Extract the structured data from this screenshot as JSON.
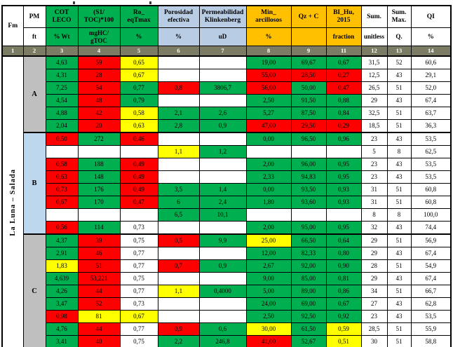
{
  "colors": {
    "cell_green": "#00b050",
    "cell_red": "#ff0000",
    "cell_yellow": "#ffff00",
    "header_green": "#00b050",
    "header_blue": "#b8cce4",
    "header_gold": "#ffc000",
    "number_row_bg": "#7c7c64",
    "group_gray": "#bfbfbf",
    "group_blue": "#bdd7ee"
  },
  "chart_data": {
    "type": "table",
    "fm_header": "Fm",
    "pm_header": "PM",
    "pm_unit": "ft",
    "rotated_label": "La Luna – Salada",
    "columns": [
      {
        "key": "cot",
        "title": "COT\nLECO",
        "unit": "% Wt",
        "bg": "g"
      },
      {
        "key": "s1toc",
        "title": "(S1/\nTOC)*100",
        "unit": "mgHC/\ngTOC",
        "bg": "g"
      },
      {
        "key": "ro",
        "title": "Ro_\neqTmax",
        "unit": "%",
        "bg": "g"
      },
      {
        "key": "por",
        "title": "Porosidad\nefectiva",
        "unit": "%",
        "bg": "b"
      },
      {
        "key": "perm",
        "title": "Permeabilidad\nKlinkenberg",
        "unit": "uD",
        "bg": "b"
      },
      {
        "key": "minarc",
        "title": "Min_\narcillosos",
        "unit": "%",
        "bg": "y"
      },
      {
        "key": "qzc",
        "title": "Qz + C",
        "unit": "",
        "bg": "y"
      },
      {
        "key": "bihu",
        "title": "BI_Hu,\n2015",
        "unit": "fraction",
        "bg": "y"
      },
      {
        "key": "sum",
        "title": "Sum.",
        "unit": "unitless",
        "bg": "w"
      },
      {
        "key": "summax",
        "title": "Sum.\nMax.",
        "unit": "Q.",
        "bg": "w"
      },
      {
        "key": "qi",
        "title": "QI",
        "unit": "%",
        "bg": "w"
      }
    ],
    "column_numbers": [
      "1",
      "2",
      "3",
      "4",
      "5",
      "6",
      "7",
      "8",
      "9",
      "11",
      "12",
      "13",
      "14"
    ],
    "groups": [
      {
        "label": "A",
        "bg_key": "group_gray",
        "rows": [
          [
            [
              "4,63",
              "g"
            ],
            [
              "59",
              "r"
            ],
            [
              "0,65",
              "y"
            ],
            [
              "",
              "w"
            ],
            [
              "",
              "w"
            ],
            [
              "19,00",
              "g"
            ],
            [
              "69,67",
              "g"
            ],
            [
              "0,67",
              "g"
            ],
            [
              "31,5",
              "w"
            ],
            [
              "52",
              "w"
            ],
            [
              "60,6",
              "w"
            ]
          ],
          [
            [
              "4,31",
              "g"
            ],
            [
              "28",
              "r"
            ],
            [
              "0,67",
              "y"
            ],
            [
              "",
              "w"
            ],
            [
              "",
              "w"
            ],
            [
              "55,00",
              "r"
            ],
            [
              "28,50",
              "r"
            ],
            [
              "0,27",
              "r"
            ],
            [
              "12,5",
              "w"
            ],
            [
              "43",
              "w"
            ],
            [
              "29,1",
              "w"
            ]
          ],
          [
            [
              "7,25",
              "g"
            ],
            [
              "54",
              "r"
            ],
            [
              "0,77",
              "g"
            ],
            [
              "0,8",
              "r"
            ],
            [
              "3806,7",
              "g"
            ],
            [
              "56,00",
              "r"
            ],
            [
              "50,00",
              "g"
            ],
            [
              "0,47",
              "r"
            ],
            [
              "26,5",
              "w"
            ],
            [
              "51",
              "w"
            ],
            [
              "52,0",
              "w"
            ]
          ],
          [
            [
              "4,54",
              "g"
            ],
            [
              "48",
              "r"
            ],
            [
              "0,79",
              "g"
            ],
            [
              "",
              "w"
            ],
            [
              "",
              "w"
            ],
            [
              "2,50",
              "g"
            ],
            [
              "91,50",
              "g"
            ],
            [
              "0,88",
              "g"
            ],
            [
              "29",
              "w"
            ],
            [
              "43",
              "w"
            ],
            [
              "67,4",
              "w"
            ]
          ],
          [
            [
              "4,88",
              "g"
            ],
            [
              "42",
              "r"
            ],
            [
              "0,58",
              "y"
            ],
            [
              "2,1",
              "g"
            ],
            [
              "2,6",
              "g"
            ],
            [
              "5,27",
              "g"
            ],
            [
              "87,50",
              "g"
            ],
            [
              "0,84",
              "g"
            ],
            [
              "32,5",
              "w"
            ],
            [
              "51",
              "w"
            ],
            [
              "63,7",
              "w"
            ]
          ],
          [
            [
              "2,04",
              "g"
            ],
            [
              "20",
              "r"
            ],
            [
              "0,63",
              "y"
            ],
            [
              "2,8",
              "g"
            ],
            [
              "0,9",
              "g"
            ],
            [
              "47,00",
              "r"
            ],
            [
              "29,50",
              "r"
            ],
            [
              "0,29",
              "r"
            ],
            [
              "18,5",
              "w"
            ],
            [
              "51",
              "w"
            ],
            [
              "36,3",
              "w"
            ]
          ]
        ]
      },
      {
        "label": "B",
        "bg_key": "group_blue",
        "rows": [
          [
            [
              "0,50",
              "r"
            ],
            [
              "272",
              "g"
            ],
            [
              "0,46",
              "r"
            ],
            [
              "",
              "w"
            ],
            [
              "",
              "w"
            ],
            [
              "0,00",
              "g"
            ],
            [
              "96,50",
              "g"
            ],
            [
              "0,96",
              "g"
            ],
            [
              "23",
              "w"
            ],
            [
              "43",
              "w"
            ],
            [
              "53,5",
              "w"
            ]
          ],
          [
            [
              "",
              "w"
            ],
            [
              "",
              "w"
            ],
            [
              "",
              "w"
            ],
            [
              "1,1",
              "y"
            ],
            [
              "1,2",
              "g"
            ],
            [
              "",
              "w"
            ],
            [
              "",
              "w"
            ],
            [
              "",
              "w"
            ],
            [
              "5",
              "w"
            ],
            [
              "8",
              "w"
            ],
            [
              "62,5",
              "w"
            ]
          ],
          [
            [
              "0,58",
              "r"
            ],
            [
              "188",
              "g"
            ],
            [
              "0,49",
              "r"
            ],
            [
              "",
              "w"
            ],
            [
              "",
              "w"
            ],
            [
              "2,00",
              "g"
            ],
            [
              "96,00",
              "g"
            ],
            [
              "0,95",
              "g"
            ],
            [
              "23",
              "w"
            ],
            [
              "43",
              "w"
            ],
            [
              "53,5",
              "w"
            ]
          ],
          [
            [
              "0,63",
              "r"
            ],
            [
              "148",
              "g"
            ],
            [
              "0,49",
              "r"
            ],
            [
              "",
              "w"
            ],
            [
              "",
              "w"
            ],
            [
              "2,33",
              "g"
            ],
            [
              "94,83",
              "g"
            ],
            [
              "0,95",
              "g"
            ],
            [
              "23",
              "w"
            ],
            [
              "43",
              "w"
            ],
            [
              "53,5",
              "w"
            ]
          ],
          [
            [
              "0,73",
              "r"
            ],
            [
              "176",
              "g"
            ],
            [
              "0,49",
              "r"
            ],
            [
              "3,5",
              "g"
            ],
            [
              "1,4",
              "g"
            ],
            [
              "0,00",
              "g"
            ],
            [
              "93,50",
              "g"
            ],
            [
              "0,93",
              "g"
            ],
            [
              "31",
              "w"
            ],
            [
              "51",
              "w"
            ],
            [
              "60,8",
              "w"
            ]
          ],
          [
            [
              "0,67",
              "r"
            ],
            [
              "170",
              "g"
            ],
            [
              "0,47",
              "r"
            ],
            [
              "6",
              "g"
            ],
            [
              "2,4",
              "g"
            ],
            [
              "1,80",
              "g"
            ],
            [
              "93,60",
              "g"
            ],
            [
              "0,93",
              "g"
            ],
            [
              "31",
              "w"
            ],
            [
              "51",
              "w"
            ],
            [
              "60,8",
              "w"
            ]
          ],
          [
            [
              "",
              "w"
            ],
            [
              "",
              "w"
            ],
            [
              "",
              "w"
            ],
            [
              "6,5",
              "g"
            ],
            [
              "10,1",
              "g"
            ],
            [
              "",
              "w"
            ],
            [
              "",
              "w"
            ],
            [
              "",
              "w"
            ],
            [
              "8",
              "w"
            ],
            [
              "8",
              "w"
            ],
            [
              "100,0",
              "w"
            ]
          ],
          [
            [
              "0,56",
              "r"
            ],
            [
              "114",
              "g"
            ],
            [
              "0,73",
              "w"
            ],
            [
              "",
              "w"
            ],
            [
              "",
              "w"
            ],
            [
              "2,00",
              "g"
            ],
            [
              "95,00",
              "g"
            ],
            [
              "0,95",
              "g"
            ],
            [
              "32",
              "w"
            ],
            [
              "43",
              "w"
            ],
            [
              "74,4",
              "w"
            ]
          ]
        ]
      },
      {
        "label": "C",
        "bg_key": "group_gray",
        "rows": [
          [
            [
              "4,37",
              "g"
            ],
            [
              "39",
              "r"
            ],
            [
              "0,75",
              "w"
            ],
            [
              "0,5",
              "r"
            ],
            [
              "9,9",
              "g"
            ],
            [
              "25,00",
              "y"
            ],
            [
              "66,50",
              "g"
            ],
            [
              "0,64",
              "g"
            ],
            [
              "29",
              "w"
            ],
            [
              "51",
              "w"
            ],
            [
              "56,9",
              "w"
            ]
          ],
          [
            [
              "2,91",
              "g"
            ],
            [
              "46",
              "r"
            ],
            [
              "0,77",
              "w"
            ],
            [
              "",
              "w"
            ],
            [
              "",
              "w"
            ],
            [
              "12,00",
              "g"
            ],
            [
              "82,33",
              "g"
            ],
            [
              "0,80",
              "g"
            ],
            [
              "29",
              "w"
            ],
            [
              "43",
              "w"
            ],
            [
              "67,4",
              "w"
            ]
          ],
          [
            [
              "1,83",
              "y"
            ],
            [
              "51",
              "r"
            ],
            [
              "0,77",
              "w"
            ],
            [
              "0,7",
              "r"
            ],
            [
              "0,9",
              "g"
            ],
            [
              "2,67",
              "g"
            ],
            [
              "92,00",
              "g"
            ],
            [
              "0,90",
              "g"
            ],
            [
              "28",
              "w"
            ],
            [
              "51",
              "w"
            ],
            [
              "54,9",
              "w"
            ]
          ],
          [
            [
              "4,639",
              "g"
            ],
            [
              "53,221",
              "r"
            ],
            [
              "0,75",
              "w"
            ],
            [
              "",
              "w"
            ],
            [
              "",
              "w"
            ],
            [
              "9,00",
              "g"
            ],
            [
              "85,00",
              "g"
            ],
            [
              "0,81",
              "g"
            ],
            [
              "29",
              "w"
            ],
            [
              "43",
              "w"
            ],
            [
              "67,4",
              "w"
            ]
          ],
          [
            [
              "4,26",
              "g"
            ],
            [
              "44",
              "r"
            ],
            [
              "0,77",
              "w"
            ],
            [
              "1,1",
              "y"
            ],
            [
              "0,4000",
              "g"
            ],
            [
              "5,00",
              "g"
            ],
            [
              "89,00",
              "g"
            ],
            [
              "0,86",
              "g"
            ],
            [
              "34",
              "w"
            ],
            [
              "51",
              "w"
            ],
            [
              "66,7",
              "w"
            ]
          ],
          [
            [
              "3,47",
              "g"
            ],
            [
              "52",
              "r"
            ],
            [
              "0,73",
              "w"
            ],
            [
              "",
              "w"
            ],
            [
              "",
              "w"
            ],
            [
              "24,00",
              "g"
            ],
            [
              "69,00",
              "g"
            ],
            [
              "0,67",
              "g"
            ],
            [
              "27",
              "w"
            ],
            [
              "43",
              "w"
            ],
            [
              "62,8",
              "w"
            ]
          ],
          [
            [
              "0,98",
              "r"
            ],
            [
              "81",
              "y"
            ],
            [
              "0,67",
              "y"
            ],
            [
              "",
              "w"
            ],
            [
              "",
              "w"
            ],
            [
              "2,50",
              "g"
            ],
            [
              "92,50",
              "g"
            ],
            [
              "0,92",
              "g"
            ],
            [
              "23",
              "w"
            ],
            [
              "43",
              "w"
            ],
            [
              "53,5",
              "w"
            ]
          ],
          [
            [
              "4,76",
              "g"
            ],
            [
              "44",
              "r"
            ],
            [
              "0,77",
              "w"
            ],
            [
              "0,9",
              "r"
            ],
            [
              "0,6",
              "g"
            ],
            [
              "30,00",
              "y"
            ],
            [
              "61,50",
              "g"
            ],
            [
              "0,59",
              "y"
            ],
            [
              "28,5",
              "w"
            ],
            [
              "51",
              "w"
            ],
            [
              "55,9",
              "w"
            ]
          ],
          [
            [
              "3,41",
              "g"
            ],
            [
              "40",
              "r"
            ],
            [
              "0,75",
              "w"
            ],
            [
              "2,2",
              "g"
            ],
            [
              "246,8",
              "g"
            ],
            [
              "41,00",
              "r"
            ],
            [
              "52,67",
              "g"
            ],
            [
              "0,51",
              "y"
            ],
            [
              "30",
              "w"
            ],
            [
              "51",
              "w"
            ],
            [
              "58,8",
              "w"
            ]
          ]
        ]
      }
    ]
  }
}
